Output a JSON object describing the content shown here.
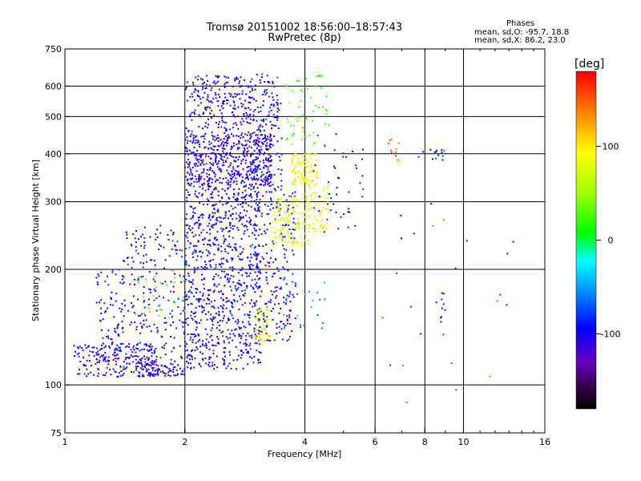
{
  "header": {
    "title": "Tromsø 20151002 18:56:00–18:57:43",
    "subtitle": "RwPretec (8p)"
  },
  "phase_box": {
    "heading": "Phases",
    "line1": "mean, sd,O: -95.7, 18.8",
    "line2": "mean, sd,X:  86.2, 23.0"
  },
  "colorbar": {
    "unit_label": "[deg]",
    "ticks": [
      {
        "value": 100,
        "label": "100"
      },
      {
        "value": 0,
        "label": "0"
      },
      {
        "value": -100,
        "label": "-100"
      }
    ],
    "range": [
      -180,
      180
    ]
  },
  "chart_data": {
    "type": "scatter",
    "xlabel": "Frequency [MHz]",
    "ylabel": "Stationary phase Virtual Height [km]",
    "xscale": "log",
    "yscale": "log",
    "xlim": [
      1,
      16
    ],
    "ylim": [
      75,
      750
    ],
    "xticks": [
      {
        "v": 1,
        "l": "1"
      },
      {
        "v": 2,
        "l": "2"
      },
      {
        "v": 4,
        "l": "4"
      },
      {
        "v": 6,
        "l": "6"
      },
      {
        "v": 8,
        "l": "8"
      },
      {
        "v": 10,
        "l": "10"
      },
      {
        "v": 16,
        "l": "16"
      }
    ],
    "yticks": [
      {
        "v": 75,
        "l": "75"
      },
      {
        "v": 100,
        "l": "100"
      },
      {
        "v": 200,
        "l": "200"
      },
      {
        "v": 300,
        "l": "300"
      },
      {
        "v": 400,
        "l": "400"
      },
      {
        "v": 500,
        "l": "500"
      },
      {
        "v": 600,
        "l": "600"
      },
      {
        "v": 750,
        "l": "750"
      }
    ],
    "vgrid": [
      2,
      4,
      6,
      8,
      10
    ],
    "hgrid": [
      100,
      200,
      300,
      400,
      500,
      600
    ],
    "grid": true,
    "color_variable": "phase [deg]",
    "clusters": [
      {
        "fmin": 1.05,
        "fmax": 1.7,
        "hmin": 105,
        "hmax": 128,
        "phase": -105,
        "count": 180
      },
      {
        "fmin": 1.5,
        "fmax": 2.0,
        "hmin": 105,
        "hmax": 115,
        "phase": -105,
        "count": 90
      },
      {
        "fmin": 1.2,
        "fmax": 2.0,
        "hmin": 115,
        "hmax": 200,
        "phase": -100,
        "count": 230
      },
      {
        "fmin": 1.5,
        "fmax": 2.0,
        "hmin": 150,
        "hmax": 200,
        "phase": 30,
        "count": 30
      },
      {
        "fmin": 1.4,
        "fmax": 2.0,
        "hmin": 200,
        "hmax": 260,
        "phase": -95,
        "count": 70
      },
      {
        "fmin": 2.0,
        "fmax": 3.1,
        "hmin": 110,
        "hmax": 200,
        "phase": -100,
        "count": 450
      },
      {
        "fmin": 2.0,
        "fmax": 3.1,
        "hmin": 200,
        "hmax": 330,
        "phase": -100,
        "count": 420
      },
      {
        "fmin": 2.0,
        "fmax": 3.3,
        "hmin": 330,
        "hmax": 450,
        "phase": -110,
        "count": 550
      },
      {
        "fmin": 2.0,
        "fmax": 3.0,
        "hmin": 450,
        "hmax": 640,
        "phase": -105,
        "count": 230
      },
      {
        "fmin": 2.9,
        "fmax": 3.5,
        "hmin": 320,
        "hmax": 650,
        "phase": -95,
        "count": 160
      },
      {
        "fmin": 3.0,
        "fmax": 3.8,
        "hmin": 130,
        "hmax": 320,
        "phase": -100,
        "count": 220
      },
      {
        "fmin": 3.0,
        "fmax": 3.3,
        "hmin": 130,
        "hmax": 160,
        "phase": 80,
        "count": 55
      },
      {
        "fmin": 3.3,
        "fmax": 4.1,
        "hmin": 230,
        "hmax": 310,
        "phase": 80,
        "count": 130
      },
      {
        "fmin": 3.7,
        "fmax": 4.3,
        "hmin": 330,
        "hmax": 400,
        "phase": 90,
        "count": 110
      },
      {
        "fmin": 4.0,
        "fmax": 4.6,
        "hmin": 250,
        "hmax": 330,
        "phase": 85,
        "count": 70
      },
      {
        "fmin": 3.6,
        "fmax": 4.6,
        "hmin": 400,
        "hmax": 640,
        "phase": 30,
        "count": 55
      },
      {
        "fmin": 4.2,
        "fmax": 5.6,
        "hmin": 250,
        "hmax": 450,
        "phase": -100,
        "count": 45
      },
      {
        "fmin": 3.5,
        "fmax": 4.5,
        "hmin": 140,
        "hmax": 200,
        "phase": -60,
        "count": 30
      },
      {
        "fmin": 6.4,
        "fmax": 6.9,
        "hmin": 380,
        "hmax": 440,
        "phase": 140,
        "count": 12
      },
      {
        "fmin": 7.7,
        "fmax": 9.3,
        "hmin": 385,
        "hmax": 410,
        "phase": -90,
        "count": 14
      },
      {
        "fmin": 8.7,
        "fmax": 9.0,
        "hmin": 135,
        "hmax": 175,
        "phase": -100,
        "count": 10
      },
      {
        "fmin": 6.5,
        "fmax": 13.5,
        "hmin": 110,
        "hmax": 330,
        "phase": -100,
        "count": 14
      },
      {
        "fmin": 5.5,
        "fmax": 13.5,
        "hmin": 80,
        "hmax": 320,
        "phase": 150,
        "count": 10
      }
    ]
  }
}
